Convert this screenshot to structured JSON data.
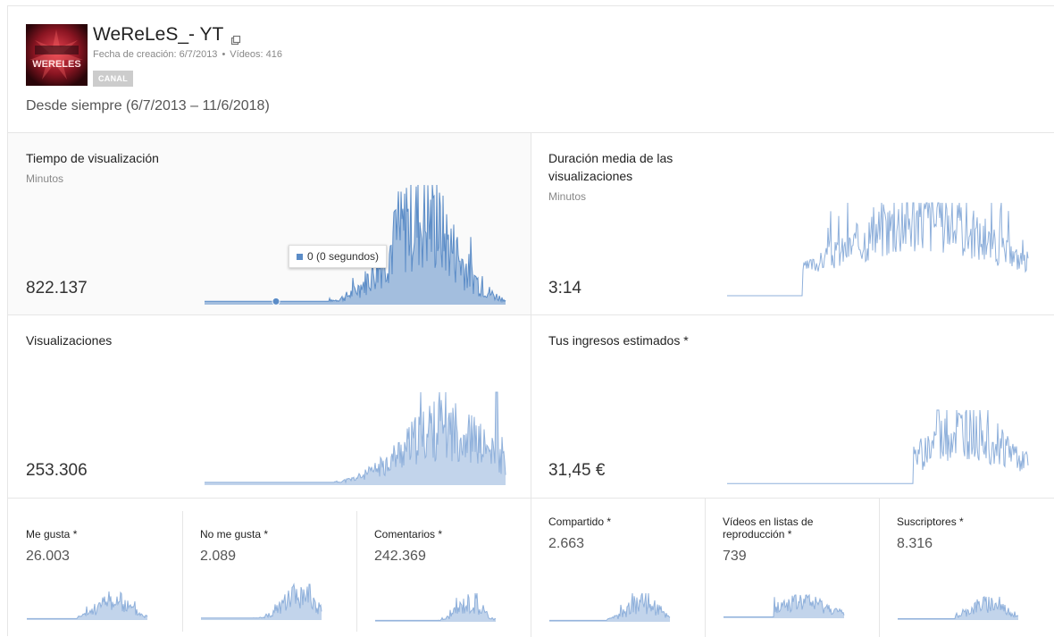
{
  "channel": {
    "name": "WeReLeS_- YT",
    "created_label": "Fecha de creación: 6/7/2013",
    "videos_label": "Vídeos: 416",
    "badge": "CANAL",
    "thumbnail_text": "WERELES"
  },
  "date_range": "Desde siempre (6/7/2013 – 11/6/2018)",
  "metrics": {
    "watch_time": {
      "title": "Tiempo de visualización",
      "unit": "Minutos",
      "value": "822.137",
      "tooltip": "0 (0 segundos)"
    },
    "avg_duration": {
      "title": "Duración media de las visualizaciones",
      "unit": "Minutos",
      "value": "3:14"
    },
    "views": {
      "title": "Visualizaciones",
      "value": "253.306"
    },
    "revenue": {
      "title": "Tus ingresos estimados *",
      "value": "31,45 €"
    },
    "likes": {
      "title": "Me gusta *",
      "value": "26.003"
    },
    "dislikes": {
      "title": "No me gusta *",
      "value": "2.089"
    },
    "comments": {
      "title": "Comentarios *",
      "value": "242.369"
    },
    "shares": {
      "title": "Compartido *",
      "value": "2.663"
    },
    "playlists": {
      "title": "Vídeos en listas de reproducción *",
      "value": "739"
    },
    "subscribers": {
      "title": "Suscriptores *",
      "value": "8.316"
    }
  },
  "colors": {
    "line": "#5b8cc7",
    "line_light": "#8fb0db",
    "hover_bg": "#fafafa",
    "border": "#e6e6e6"
  }
}
